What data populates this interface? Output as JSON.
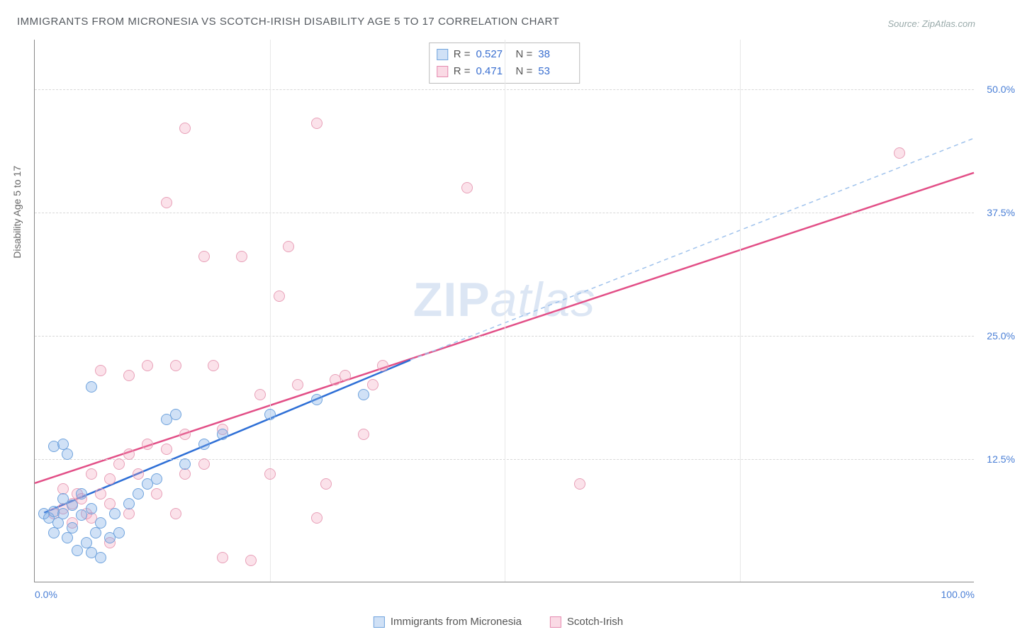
{
  "title": "IMMIGRANTS FROM MICRONESIA VS SCOTCH-IRISH DISABILITY AGE 5 TO 17 CORRELATION CHART",
  "source": "Source: ZipAtlas.com",
  "watermark_bold": "ZIP",
  "watermark_light": "atlas",
  "yaxis_label": "Disability Age 5 to 17",
  "chart": {
    "type": "scatter-with-regression",
    "background_color": "#ffffff",
    "grid_color": "#d8d8d8",
    "axis_color": "#888888",
    "xlim": [
      0,
      100
    ],
    "ylim": [
      0,
      55
    ],
    "xticks": [
      0,
      100
    ],
    "xtick_labels": [
      "0.0%",
      "100.0%"
    ],
    "yticks": [
      12.5,
      25.0,
      37.5,
      50.0
    ],
    "ytick_labels": [
      "12.5%",
      "25.0%",
      "37.5%",
      "50.0%"
    ],
    "tick_color": "#4a7fd6",
    "tick_fontsize": 14
  },
  "legend_stats": [
    {
      "swatch": "blue",
      "r_label": "R =",
      "r": "0.527",
      "n_label": "N =",
      "n": "38"
    },
    {
      "swatch": "pink",
      "r_label": "R =",
      "r": "0.471",
      "n_label": "N =",
      "n": "53"
    }
  ],
  "bottom_legend": [
    {
      "swatch": "blue",
      "label": "Immigrants from Micronesia"
    },
    {
      "swatch": "pink",
      "label": "Scotch-Irish"
    }
  ],
  "series": {
    "blue": {
      "name": "Immigrants from Micronesia",
      "color_fill": "rgba(120,170,230,0.35)",
      "color_stroke": "#6fa3dd",
      "line_color": "#2e6fd6",
      "dash_color": "#9fc2ec",
      "points": [
        [
          1,
          7
        ],
        [
          1.5,
          6.5
        ],
        [
          2,
          7.2
        ],
        [
          2,
          5
        ],
        [
          2.5,
          6
        ],
        [
          3,
          7
        ],
        [
          3,
          8.5
        ],
        [
          3.5,
          4.5
        ],
        [
          4,
          5.5
        ],
        [
          4,
          7.8
        ],
        [
          4.5,
          3.2
        ],
        [
          5,
          6.8
        ],
        [
          5,
          9
        ],
        [
          5.5,
          4
        ],
        [
          6,
          7.5
        ],
        [
          6,
          3
        ],
        [
          6.5,
          5
        ],
        [
          7,
          6
        ],
        [
          7,
          2.5
        ],
        [
          8,
          4.5
        ],
        [
          8.5,
          7
        ],
        [
          9,
          5
        ],
        [
          2,
          13.8
        ],
        [
          3,
          14
        ],
        [
          3.5,
          13
        ],
        [
          6,
          19.8
        ],
        [
          10,
          8
        ],
        [
          11,
          9
        ],
        [
          12,
          10
        ],
        [
          13,
          10.5
        ],
        [
          14,
          16.5
        ],
        [
          15,
          17
        ],
        [
          16,
          12
        ],
        [
          18,
          14
        ],
        [
          20,
          15
        ],
        [
          25,
          17
        ],
        [
          30,
          18.5
        ],
        [
          35,
          19
        ]
      ],
      "regression_solid": {
        "x1": 1,
        "y1": 7,
        "x2": 40,
        "y2": 22.5
      },
      "regression_dashed": {
        "x1": 40,
        "y1": 22.5,
        "x2": 100,
        "y2": 45
      }
    },
    "pink": {
      "name": "Scotch-Irish",
      "color_fill": "rgba(240,150,180,0.28)",
      "color_stroke": "#e8a0b8",
      "line_color": "#e24f87",
      "points": [
        [
          2,
          7
        ],
        [
          3,
          7.5
        ],
        [
          4,
          8
        ],
        [
          4,
          6
        ],
        [
          5,
          8.5
        ],
        [
          5.5,
          7
        ],
        [
          6,
          6.5
        ],
        [
          6,
          11
        ],
        [
          7,
          9
        ],
        [
          8,
          8
        ],
        [
          8,
          10.5
        ],
        [
          9,
          12
        ],
        [
          10,
          7
        ],
        [
          10,
          13
        ],
        [
          11,
          11
        ],
        [
          12,
          14
        ],
        [
          12,
          22
        ],
        [
          13,
          9
        ],
        [
          14,
          13.5
        ],
        [
          15,
          22
        ],
        [
          15,
          7
        ],
        [
          16,
          11
        ],
        [
          16,
          15
        ],
        [
          18,
          33
        ],
        [
          18,
          12
        ],
        [
          19,
          22
        ],
        [
          20,
          15.5
        ],
        [
          20,
          2.5
        ],
        [
          22,
          33
        ],
        [
          23,
          2.2
        ],
        [
          24,
          19
        ],
        [
          25,
          11
        ],
        [
          26,
          29
        ],
        [
          27,
          34
        ],
        [
          28,
          20
        ],
        [
          30,
          6.5
        ],
        [
          31,
          10
        ],
        [
          32,
          20.5
        ],
        [
          33,
          21
        ],
        [
          35,
          15
        ],
        [
          36,
          20
        ],
        [
          37,
          22
        ],
        [
          46,
          40
        ],
        [
          58,
          10
        ],
        [
          92,
          43.5
        ],
        [
          14,
          38.5
        ],
        [
          16,
          46
        ],
        [
          30,
          46.5
        ],
        [
          7,
          21.5
        ],
        [
          10,
          21
        ],
        [
          8,
          4
        ],
        [
          3,
          9.5
        ],
        [
          4.5,
          9
        ]
      ],
      "regression_solid": {
        "x1": 0,
        "y1": 10,
        "x2": 100,
        "y2": 41.5
      }
    }
  }
}
